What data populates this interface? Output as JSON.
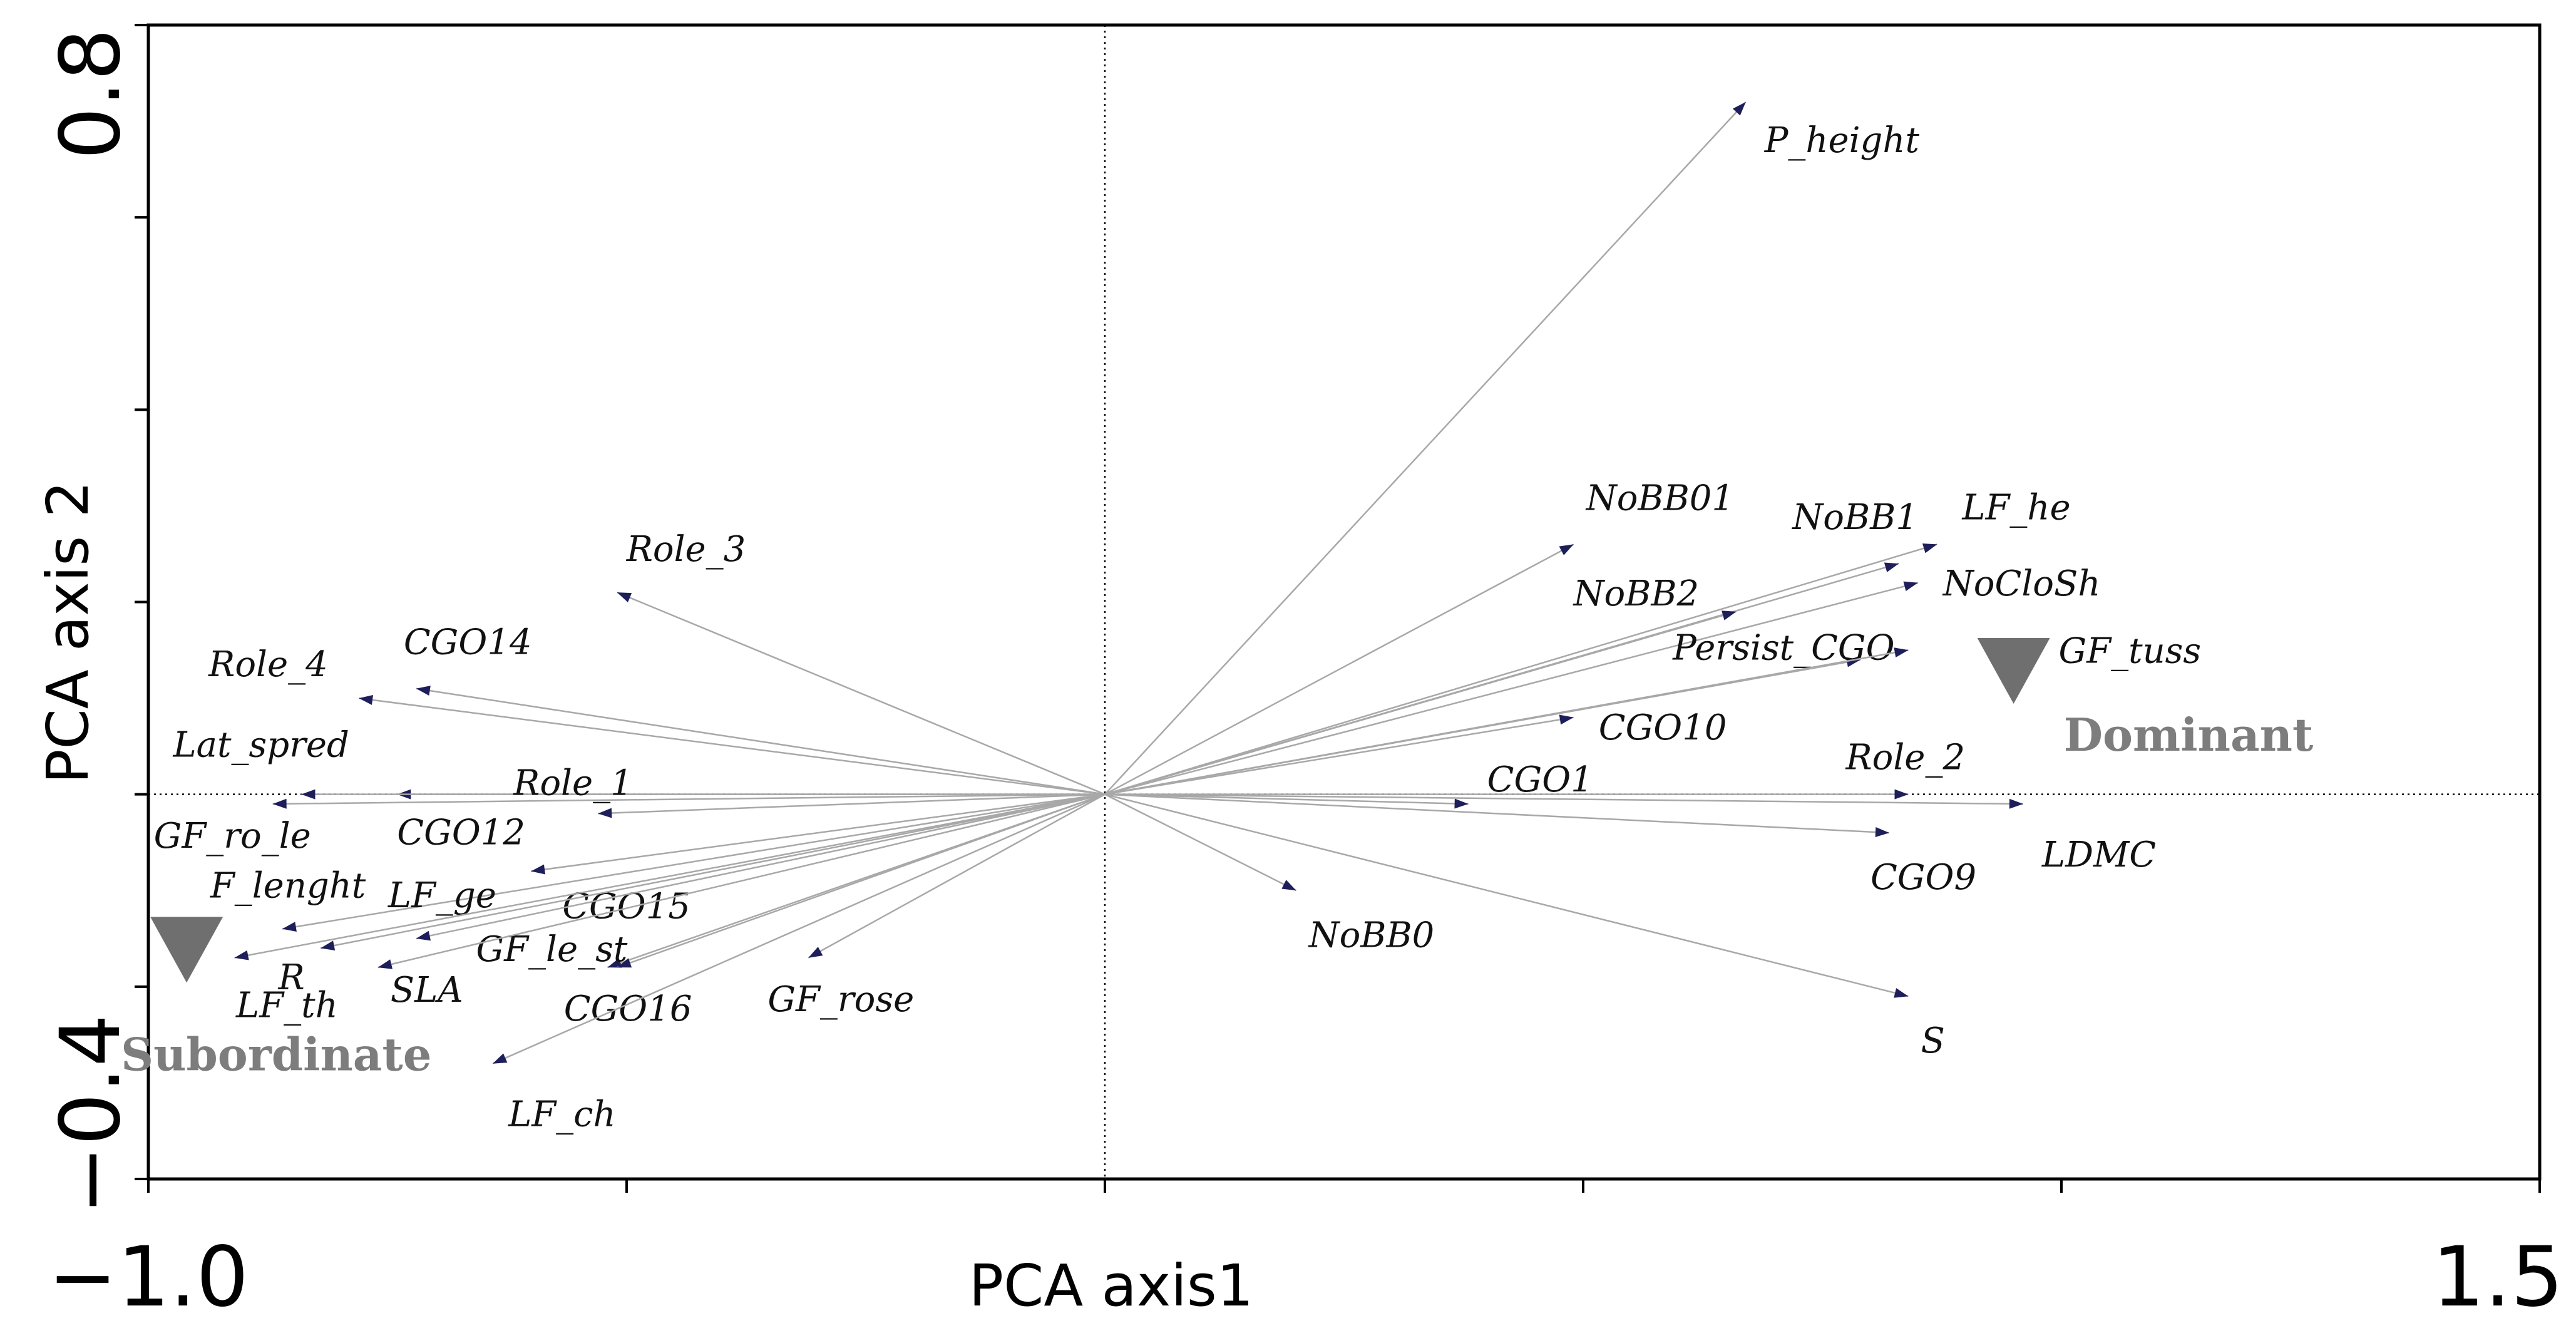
{
  "chart_data": {
    "type": "scatter",
    "subtype": "pca-biplot",
    "xlabel": "PCA axis1",
    "ylabel": "PCA axis 2",
    "xlim": [
      -1.0,
      1.5
    ],
    "ylim": [
      -0.4,
      0.8
    ],
    "x_tick_labels": [
      "−1.0",
      "1.5"
    ],
    "y_tick_labels": [
      "−0.4",
      "0.8"
    ],
    "x_minor_ticks": [
      -1.0,
      -0.5,
      0.0,
      0.5,
      1.0,
      1.5
    ],
    "y_minor_ticks": [
      -0.4,
      -0.2,
      0.0,
      0.2,
      0.4,
      0.6,
      0.8
    ],
    "origin": [
      0.0,
      0.0
    ],
    "vectors": [
      {
        "name": "P_height",
        "x": 0.67,
        "y": 0.72
      },
      {
        "name": "NoBB01",
        "x": 0.49,
        "y": 0.26
      },
      {
        "name": "NoBB1",
        "x": 0.83,
        "y": 0.24
      },
      {
        "name": "LF_he",
        "x": 0.87,
        "y": 0.26
      },
      {
        "name": "NoCloSh",
        "x": 0.85,
        "y": 0.22
      },
      {
        "name": "NoBB2",
        "x": 0.66,
        "y": 0.19
      },
      {
        "name": "Persist_CGO",
        "x": 0.79,
        "y": 0.14
      },
      {
        "name": "GF_tuss",
        "x": 0.84,
        "y": 0.15
      },
      {
        "name": "CGO10",
        "x": 0.49,
        "y": 0.08
      },
      {
        "name": "CGO1",
        "x": 0.38,
        "y": -0.01
      },
      {
        "name": "Role_2",
        "x": 0.84,
        "y": 0.0
      },
      {
        "name": "LDMC",
        "x": 0.96,
        "y": -0.01
      },
      {
        "name": "CGO9",
        "x": 0.82,
        "y": -0.04
      },
      {
        "name": "S",
        "x": 0.84,
        "y": -0.21
      },
      {
        "name": "NoBB0",
        "x": 0.2,
        "y": -0.1
      },
      {
        "name": "Role_3",
        "x": -0.51,
        "y": 0.21
      },
      {
        "name": "CGO14",
        "x": -0.72,
        "y": 0.11
      },
      {
        "name": "Role_4",
        "x": -0.78,
        "y": 0.1
      },
      {
        "name": "CGO12",
        "x": -0.74,
        "y": 0.0
      },
      {
        "name": "Lat_spred",
        "x": -0.84,
        "y": 0.0
      },
      {
        "name": "Role_1",
        "x": -0.53,
        "y": -0.02
      },
      {
        "name": "GF_ro_le",
        "x": -0.87,
        "y": -0.01
      },
      {
        "name": "CGO15",
        "x": -0.6,
        "y": -0.08
      },
      {
        "name": "F_lenght",
        "x": -0.86,
        "y": -0.14
      },
      {
        "name": "LF_ge",
        "x": -0.72,
        "y": -0.15
      },
      {
        "name": "GF_le_st",
        "x": -0.52,
        "y": -0.18
      },
      {
        "name": "CGO16",
        "x": -0.51,
        "y": -0.18
      },
      {
        "name": "SLA",
        "x": -0.76,
        "y": -0.18
      },
      {
        "name": "LF_th",
        "x": -0.82,
        "y": -0.16
      },
      {
        "name": "R",
        "x": -0.91,
        "y": -0.17
      },
      {
        "name": "LF_ch",
        "x": -0.64,
        "y": -0.28
      },
      {
        "name": "GF_rose",
        "x": -0.31,
        "y": -0.17
      }
    ],
    "groups": [
      {
        "name": "Dominant",
        "x": 0.95,
        "y": 0.13
      },
      {
        "name": "Subordinate",
        "x": -0.96,
        "y": -0.16
      }
    ]
  }
}
